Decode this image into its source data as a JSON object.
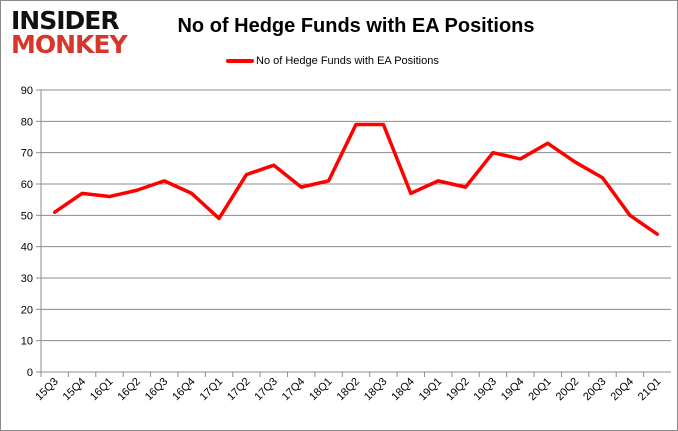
{
  "logo": {
    "line1": "INSIDER",
    "line2": "MONKEY"
  },
  "chart_data": {
    "type": "line",
    "title": "No of Hedge Funds with EA Positions",
    "categories": [
      "15Q3",
      "15Q4",
      "16Q1",
      "16Q2",
      "16Q3",
      "16Q4",
      "17Q1",
      "17Q2",
      "17Q3",
      "17Q4",
      "18Q1",
      "18Q2",
      "18Q3",
      "18Q4",
      "19Q1",
      "19Q2",
      "19Q3",
      "19Q4",
      "20Q1",
      "20Q2",
      "20Q3",
      "20Q4",
      "21Q1"
    ],
    "series": [
      {
        "name": "No of Hedge Funds with EA Positions",
        "color": "#ff0000",
        "values": [
          51,
          57,
          56,
          58,
          61,
          57,
          49,
          63,
          66,
          59,
          61,
          79,
          79,
          57,
          61,
          59,
          70,
          68,
          73,
          67,
          62,
          50,
          44
        ]
      }
    ],
    "ylim": [
      0,
      90
    ],
    "yticks": [
      0,
      10,
      20,
      30,
      40,
      50,
      60,
      70,
      80,
      90
    ],
    "grid": true,
    "legend": "top-center"
  }
}
